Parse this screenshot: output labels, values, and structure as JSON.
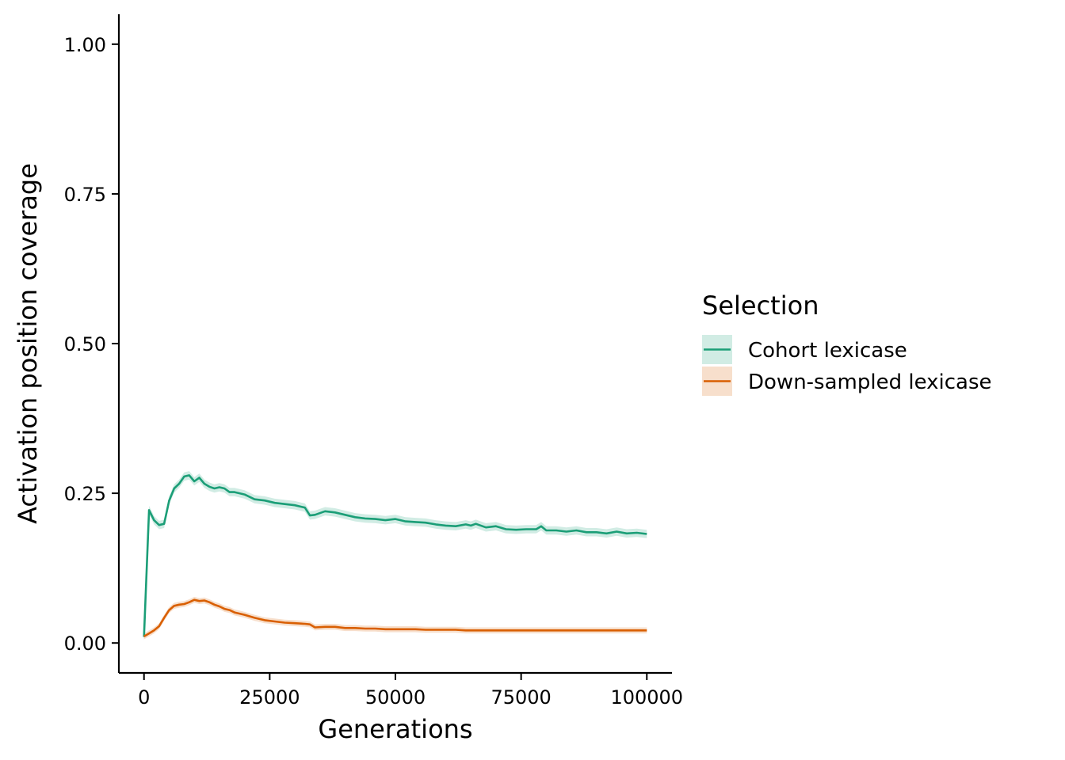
{
  "chart_data": {
    "type": "line",
    "title": "",
    "xlabel": "Generations",
    "ylabel": "Activation position coverage",
    "xlim": [
      -5000,
      105000
    ],
    "ylim": [
      -0.05,
      1.05
    ],
    "x_ticks": [
      0,
      25000,
      50000,
      75000,
      100000
    ],
    "x_tick_labels": [
      "0",
      "25000",
      "50000",
      "75000",
      "100000"
    ],
    "y_ticks": [
      0,
      0.25,
      0.5,
      0.75,
      1.0
    ],
    "y_tick_labels": [
      "0.00",
      "0.25",
      "0.50",
      "0.75",
      "1.00"
    ],
    "grid": false,
    "legend": {
      "title": "Selection",
      "placement": "right"
    },
    "series": [
      {
        "name": "Cohort lexicase",
        "color": "#1b9e77",
        "ribbon_color": "#1b9e77",
        "x": [
          0,
          1000,
          2000,
          3000,
          4000,
          5000,
          6000,
          7000,
          8000,
          9000,
          10000,
          11000,
          12000,
          13000,
          14000,
          15000,
          16000,
          17000,
          18000,
          19000,
          20000,
          22000,
          24000,
          26000,
          28000,
          30000,
          32000,
          33000,
          34000,
          36000,
          38000,
          40000,
          42000,
          44000,
          46000,
          48000,
          50000,
          52000,
          54000,
          56000,
          58000,
          60000,
          62000,
          64000,
          65000,
          66000,
          68000,
          70000,
          72000,
          74000,
          76000,
          78000,
          79000,
          80000,
          82000,
          84000,
          86000,
          88000,
          90000,
          92000,
          94000,
          96000,
          98000,
          100000
        ],
        "y": [
          0.01,
          0.222,
          0.205,
          0.197,
          0.199,
          0.238,
          0.258,
          0.266,
          0.278,
          0.28,
          0.27,
          0.276,
          0.266,
          0.261,
          0.258,
          0.26,
          0.258,
          0.252,
          0.252,
          0.25,
          0.248,
          0.24,
          0.238,
          0.234,
          0.232,
          0.23,
          0.226,
          0.213,
          0.214,
          0.22,
          0.218,
          0.214,
          0.21,
          0.208,
          0.207,
          0.205,
          0.207,
          0.203,
          0.202,
          0.201,
          0.198,
          0.196,
          0.195,
          0.198,
          0.196,
          0.199,
          0.193,
          0.195,
          0.19,
          0.189,
          0.19,
          0.19,
          0.195,
          0.188,
          0.188,
          0.186,
          0.188,
          0.185,
          0.185,
          0.183,
          0.186,
          0.183,
          0.184,
          0.182
        ],
        "ribbon_halfwidth": 0.007
      },
      {
        "name": "Down-sampled lexicase",
        "color": "#d95f02",
        "ribbon_color": "#d95f02",
        "x": [
          0,
          1000,
          2000,
          3000,
          4000,
          5000,
          6000,
          7000,
          8000,
          9000,
          10000,
          11000,
          12000,
          13000,
          14000,
          15000,
          16000,
          17000,
          18000,
          19000,
          20000,
          22000,
          24000,
          26000,
          28000,
          30000,
          32000,
          33000,
          34000,
          36000,
          38000,
          40000,
          42000,
          44000,
          46000,
          48000,
          50000,
          52000,
          54000,
          56000,
          58000,
          60000,
          62000,
          64000,
          66000,
          68000,
          70000,
          72000,
          74000,
          76000,
          78000,
          80000,
          82000,
          84000,
          86000,
          88000,
          90000,
          92000,
          94000,
          96000,
          98000,
          100000
        ],
        "y": [
          0.011,
          0.016,
          0.021,
          0.028,
          0.042,
          0.055,
          0.062,
          0.064,
          0.065,
          0.068,
          0.072,
          0.07,
          0.071,
          0.068,
          0.064,
          0.061,
          0.057,
          0.055,
          0.051,
          0.049,
          0.047,
          0.042,
          0.038,
          0.036,
          0.034,
          0.033,
          0.032,
          0.031,
          0.026,
          0.027,
          0.027,
          0.025,
          0.025,
          0.024,
          0.024,
          0.023,
          0.023,
          0.023,
          0.023,
          0.022,
          0.022,
          0.022,
          0.022,
          0.021,
          0.021,
          0.021,
          0.021,
          0.021,
          0.021,
          0.021,
          0.021,
          0.021,
          0.021,
          0.021,
          0.021,
          0.021,
          0.021,
          0.021,
          0.021,
          0.021,
          0.021,
          0.021
        ],
        "ribbon_halfwidth": 0.005
      }
    ]
  }
}
